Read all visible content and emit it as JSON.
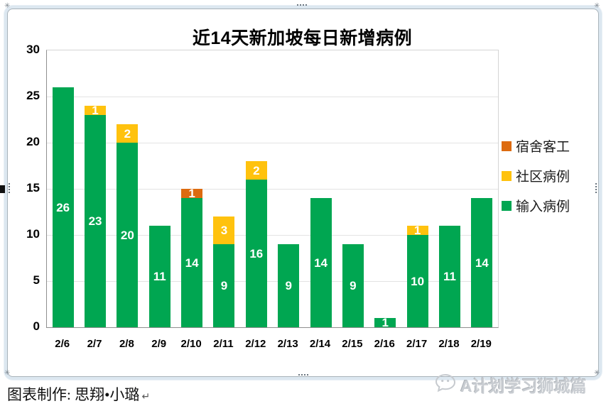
{
  "frame": {
    "border_band_color": "#dce7f0",
    "border_line_color": "#a9b3ba",
    "handles": [
      "top-left-star",
      "top-right-star",
      "bottom-left-star",
      "bottom-right-star",
      "top-center-dots",
      "bottom-center-dots",
      "left-center-dots",
      "right-center-dots"
    ]
  },
  "chart_data": {
    "type": "bar",
    "stacked": true,
    "title": "近14天新加坡每日新增病例",
    "categories": [
      "2/6",
      "2/7",
      "2/8",
      "2/9",
      "2/10",
      "2/11",
      "2/12",
      "2/13",
      "2/14",
      "2/15",
      "2/16",
      "2/17",
      "2/18",
      "2/19"
    ],
    "series": [
      {
        "name": "输入病例",
        "color": "#00A651",
        "values": [
          26,
          23,
          20,
          11,
          14,
          9,
          16,
          9,
          14,
          9,
          1,
          10,
          11,
          14
        ]
      },
      {
        "name": "社区病例",
        "color": "#FFC20E",
        "values": [
          0,
          1,
          2,
          0,
          0,
          3,
          2,
          0,
          0,
          0,
          0,
          1,
          0,
          0
        ]
      },
      {
        "name": "宿舍客工",
        "color": "#DD6B10",
        "values": [
          0,
          0,
          0,
          0,
          1,
          0,
          0,
          0,
          0,
          0,
          0,
          0,
          0,
          0
        ]
      }
    ],
    "legend": {
      "position": "right",
      "order_top_to_bottom": [
        "宿舍客工",
        "社区病例",
        "输入病例"
      ]
    },
    "ylim": [
      0,
      30
    ],
    "yticks": [
      0,
      5,
      10,
      15,
      20,
      25,
      30
    ],
    "grid": true,
    "data_label_color": "#ffffff"
  },
  "footer": {
    "credit_text": "图表制作: 思翔•小璐",
    "paragraph_mark": "↵"
  },
  "watermark": {
    "icon": "wechat-bubble-icon",
    "text": "A计划学习狮城篇",
    "color": "#c9cdd2"
  }
}
